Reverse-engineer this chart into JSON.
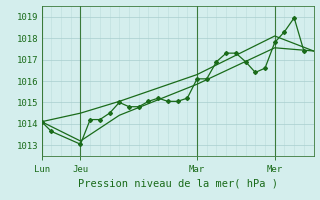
{
  "title": "Pression niveau de la mer( hPa )",
  "bg_color": "#d4eeed",
  "grid_color_minor": "#c0e0e0",
  "grid_color_major": "#a8cece",
  "line_color": "#1a6b1a",
  "vline_color": "#3a7a3a",
  "ylim": [
    1012.5,
    1019.5
  ],
  "yticks": [
    1013,
    1014,
    1015,
    1016,
    1017,
    1018,
    1019
  ],
  "xlim": [
    0,
    168
  ],
  "day_labels": [
    "Lun",
    "Jeu",
    "Mar",
    "Mer"
  ],
  "day_positions": [
    0,
    24,
    96,
    144
  ],
  "series1_x": [
    0,
    6,
    24,
    30,
    36,
    42,
    48,
    54,
    60,
    66,
    72,
    78,
    84,
    90,
    96,
    102,
    108,
    114,
    120,
    126,
    132,
    138,
    144,
    150,
    156,
    162
  ],
  "series1_y": [
    1014.1,
    1013.65,
    1013.05,
    1014.2,
    1014.2,
    1014.5,
    1015.0,
    1014.8,
    1014.8,
    1015.05,
    1015.2,
    1015.05,
    1015.05,
    1015.2,
    1016.1,
    1016.1,
    1016.9,
    1017.3,
    1017.3,
    1016.9,
    1016.4,
    1016.6,
    1017.8,
    1018.3,
    1018.95,
    1017.4
  ],
  "series2_x": [
    0,
    24,
    48,
    96,
    144,
    168
  ],
  "series2_y": [
    1014.1,
    1013.2,
    1014.4,
    1015.85,
    1017.55,
    1017.4
  ],
  "series3_x": [
    0,
    24,
    48,
    96,
    144,
    168
  ],
  "series3_y": [
    1014.1,
    1014.5,
    1015.05,
    1016.3,
    1018.1,
    1017.4
  ],
  "marker_style": "D",
  "marker_size": 2.0,
  "line_width": 0.9,
  "title_fontsize": 7.5,
  "tick_fontsize": 6.5
}
